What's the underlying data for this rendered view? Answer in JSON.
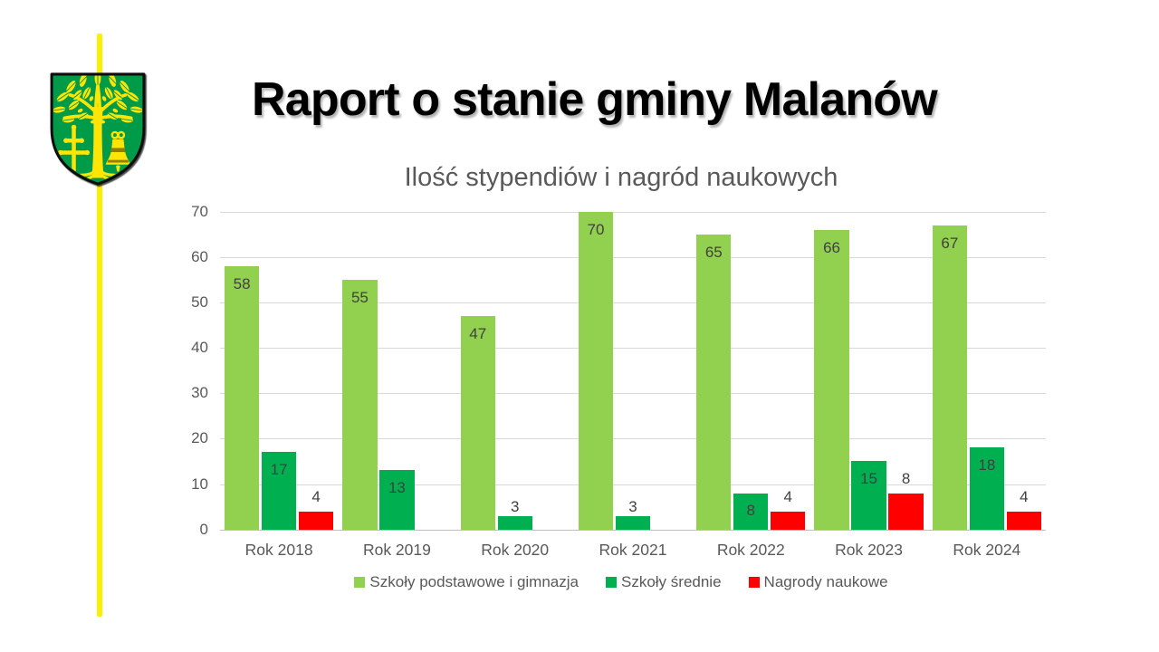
{
  "slide": {
    "title": "Raport o stanie gminy Malanów",
    "accent_line_color": "#FCF001",
    "crest": {
      "name": "Herb gminy Malanów",
      "shield_color": "#009B4A",
      "charge_color": "#FFE505",
      "detail_color": "#8F7E00",
      "border_color": "#111111"
    }
  },
  "chart_data": {
    "type": "bar",
    "title": "Ilość stypendiów i nagród naukowych",
    "title_color": "#595959",
    "categories": [
      "Rok 2018",
      "Rok 2019",
      "Rok 2020",
      "Rok 2021",
      "Rok 2022",
      "Rok 2023",
      "Rok 2024"
    ],
    "series": [
      {
        "name": "Szkoły podstawowe i gimnazja",
        "color": "#92D050",
        "values": [
          58,
          55,
          47,
          70,
          65,
          66,
          67
        ],
        "label_placement": "inside"
      },
      {
        "name": "Szkoły średnie",
        "color": "#00B050",
        "values": [
          17,
          13,
          3,
          3,
          8,
          15,
          18
        ],
        "label_placement": "inside"
      },
      {
        "name": "Nagrody naukowe",
        "color": "#FF0000",
        "values": [
          4,
          0,
          0,
          0,
          4,
          8,
          4
        ],
        "label_placement": "outside"
      }
    ],
    "y_axis": {
      "min": 0,
      "max": 70,
      "step": 10,
      "ticks": [
        0,
        10,
        20,
        30,
        40,
        50,
        60,
        70
      ]
    },
    "grid": true,
    "gridline_color": "#D9D9D9",
    "axis_line_color": "#BFBFBF",
    "label_color": "#404040",
    "axis_text_color": "#595959",
    "legend_position": "bottom"
  }
}
